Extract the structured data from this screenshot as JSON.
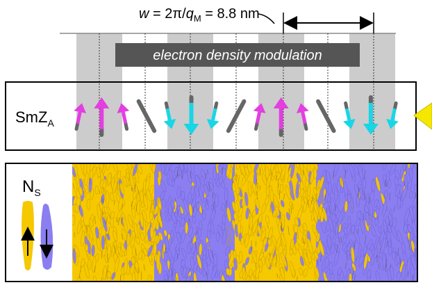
{
  "period_label": {
    "prefix": "w",
    "equals": " = 2π/",
    "q": "q",
    "sub": "M",
    "value": " = 8.8 nm"
  },
  "modulation_label": "electron density modulation",
  "smz_label": {
    "main": "SmZ",
    "sub": "A"
  },
  "ns_label": {
    "main": "N",
    "sub": "S"
  },
  "colors": {
    "magenta": "#e23ee0",
    "cyan": "#18d6e6",
    "gray_rod": "#666666",
    "stripe": "#cccccc",
    "yellow": "#f5c800",
    "blue": "#8a7ef0",
    "modulation_box": "#555555",
    "pointer": "#f5e800"
  },
  "rows": [
    {
      "type": "magenta",
      "size": "short",
      "tilt": 12
    },
    {
      "type": "magenta",
      "size": "tall",
      "tilt": 0
    },
    {
      "type": "magenta",
      "size": "short",
      "tilt": -12
    },
    {
      "type": "gray",
      "size": "long",
      "tilt": -28
    },
    {
      "type": "cyan",
      "size": "short",
      "tilt": -12
    },
    {
      "type": "cyan",
      "size": "tall",
      "tilt": 0
    },
    {
      "type": "cyan",
      "size": "short",
      "tilt": 12
    },
    {
      "type": "gray",
      "size": "long",
      "tilt": 28
    },
    {
      "type": "magenta",
      "size": "short",
      "tilt": 12
    },
    {
      "type": "magenta",
      "size": "tall",
      "tilt": 0
    },
    {
      "type": "magenta",
      "size": "short",
      "tilt": -12
    },
    {
      "type": "gray",
      "size": "long",
      "tilt": -28
    },
    {
      "type": "cyan",
      "size": "short",
      "tilt": -12
    },
    {
      "type": "cyan",
      "size": "tall",
      "tilt": 0
    },
    {
      "type": "cyan",
      "size": "short",
      "tilt": 12
    }
  ]
}
